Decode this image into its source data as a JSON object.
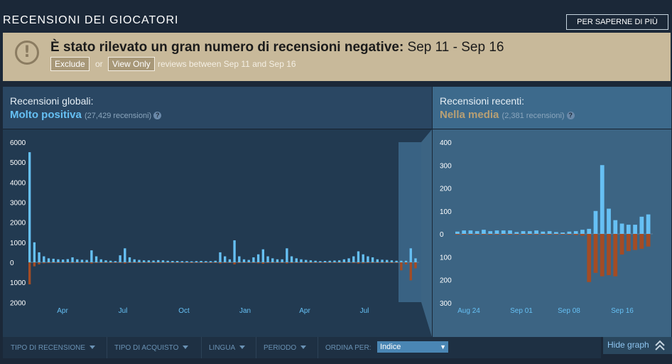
{
  "header": {
    "title": "RECENSIONI DEI GIOCATORI",
    "learn_more": "PER SAPERNE DI PIÙ"
  },
  "alert": {
    "icon": "!",
    "title_bold": "È stato rilevato un gran numero di recensioni negative:",
    "title_range": " Sep 11 - Sep 16",
    "exclude_label": "Exclude",
    "or_text": "or",
    "view_only_label": "View Only",
    "suffix_text": "reviews between Sep 11 and Sep 16"
  },
  "global": {
    "label": "Recensioni globali:",
    "summary": "Molto positiva",
    "summary_color": "#66c0f4",
    "count": "(27,429 recensioni)",
    "help": "?"
  },
  "recent": {
    "label": "Recensioni recenti:",
    "summary": "Nella media",
    "summary_color": "#b9a074",
    "count": "(2,381 recensioni)",
    "help": "?"
  },
  "filters": {
    "items": [
      {
        "label": "TIPO DI RECENSIONE"
      },
      {
        "label": "TIPO DI ACQUISTO"
      },
      {
        "label": "LINGUA"
      },
      {
        "label": "PERIODO"
      }
    ],
    "sort_label": "ORDINA PER:",
    "sort_value": "Indice",
    "sort_arrow": "▼"
  },
  "hide_graph": {
    "label": "Hide graph",
    "icon": "double-chevron-up-icon"
  },
  "colors": {
    "positive": "#66c0f4",
    "negative": "#a34c25",
    "mixed": "#b9a074"
  },
  "chart_data": [
    {
      "type": "bar",
      "title": "Recensioni globali",
      "y_ticks_positive": [
        "6000",
        "5000",
        "4000",
        "3000",
        "2000",
        "1000",
        "0"
      ],
      "y_ticks_negative": [
        "1000",
        "2000"
      ],
      "x_tick_labels": [
        "Apr",
        "Jul",
        "Oct",
        "Jan",
        "Apr",
        "Jul"
      ],
      "ylim": [
        -2000,
        6000
      ],
      "positive_values": [
        5500,
        1000,
        500,
        300,
        200,
        180,
        150,
        140,
        160,
        250,
        150,
        130,
        120,
        600,
        300,
        150,
        100,
        80,
        60,
        350,
        700,
        250,
        150,
        120,
        100,
        100,
        90,
        110,
        100,
        80,
        70,
        70,
        60,
        60,
        50,
        60,
        70,
        60,
        60,
        80,
        500,
        300,
        150,
        1100,
        300,
        150,
        120,
        250,
        400,
        650,
        300,
        200,
        150,
        150,
        700,
        300,
        200,
        150,
        120,
        100,
        80,
        60,
        70,
        80,
        90,
        100,
        150,
        200,
        300,
        550,
        400,
        300,
        250,
        150,
        130,
        120,
        100,
        80,
        80,
        80,
        700,
        200
      ],
      "negative_values": [
        -1100,
        -200,
        -100,
        -50,
        -40,
        -30,
        -30,
        -25,
        -30,
        -40,
        -30,
        -20,
        -20,
        -60,
        -40,
        -20,
        -20,
        -15,
        -10,
        -40,
        -60,
        -30,
        -20,
        -15,
        -15,
        -15,
        -15,
        -20,
        -15,
        -10,
        -10,
        -10,
        -10,
        -10,
        -10,
        -10,
        -10,
        -10,
        -10,
        -15,
        -60,
        -40,
        -20,
        -100,
        -40,
        -20,
        -20,
        -30,
        -50,
        -70,
        -40,
        -30,
        -20,
        -20,
        -60,
        -40,
        -30,
        -20,
        -20,
        -15,
        -10,
        -10,
        -10,
        -10,
        -15,
        -15,
        -20,
        -30,
        -40,
        -60,
        -50,
        -40,
        -30,
        -20,
        -20,
        -20,
        -15,
        -15,
        -400,
        -100,
        -900,
        -300
      ]
    },
    {
      "type": "bar",
      "title": "Recensioni recenti",
      "y_ticks_positive": [
        "400",
        "300",
        "200",
        "100",
        "0"
      ],
      "y_ticks_negative": [
        "100",
        "200",
        "300"
      ],
      "x_tick_labels": [
        "Aug 24",
        "Sep 01",
        "Sep 08",
        "Sep 16"
      ],
      "ylim": [
        -300,
        400
      ],
      "positive_values": [
        10,
        15,
        15,
        12,
        18,
        12,
        15,
        15,
        15,
        8,
        12,
        12,
        15,
        10,
        12,
        8,
        6,
        10,
        12,
        18,
        22,
        100,
        300,
        110,
        60,
        45,
        40,
        40,
        75,
        85
      ],
      "negative_values": [
        -2,
        -2,
        -2,
        -2,
        -2,
        -2,
        -2,
        -2,
        -2,
        -2,
        -2,
        -2,
        -2,
        -2,
        -2,
        -2,
        -2,
        -2,
        -5,
        -8,
        -210,
        -170,
        -185,
        -180,
        -185,
        -90,
        -75,
        -70,
        -65,
        -55
      ]
    }
  ]
}
